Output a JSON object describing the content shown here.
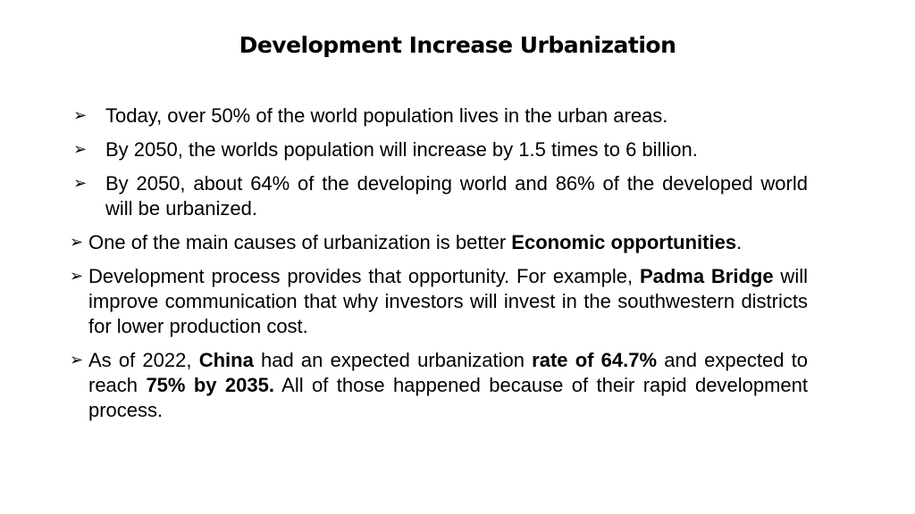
{
  "slide": {
    "title": "Development Increase Urbanization",
    "bullet_glyph": "➢",
    "bullets": [
      {
        "parts": [
          "Today, over 50% of the world population lives in the urban areas."
        ]
      },
      {
        "parts": [
          "By 2050, the worlds population will increase by 1.5 times to 6 billion."
        ]
      },
      {
        "parts": [
          "By 2050, about 64% of the developing world and 86% of the developed world will be urbanized."
        ]
      },
      {
        "parts": [
          "One of the main causes of urbanization is better ",
          "Economic opportunities",
          "."
        ]
      },
      {
        "parts": [
          "Development process provides that opportunity. For example, ",
          "Padma Bridge",
          " will improve communication that why investors will invest in the southwestern districts for lower production cost."
        ]
      },
      {
        "parts": [
          "As of 2022, ",
          "China",
          " had an expected urbanization ",
          "rate of 64.7%",
          " and expected to reach ",
          "75% by 2035.",
          " All of those happened because of their rapid development process."
        ]
      }
    ]
  }
}
